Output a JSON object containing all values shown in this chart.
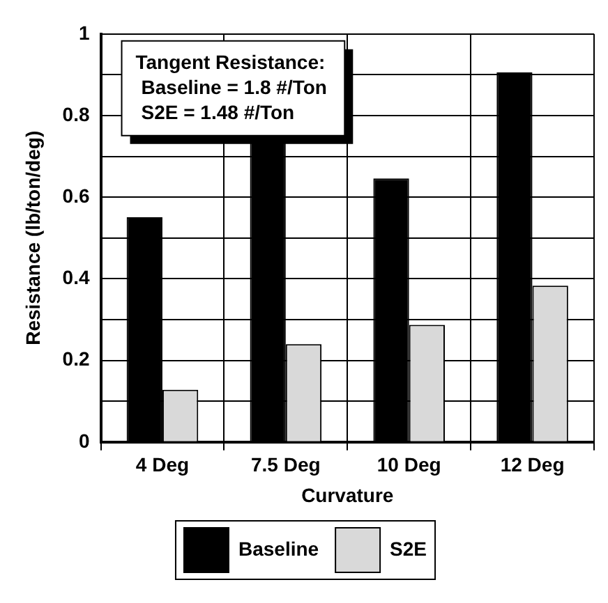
{
  "chart_data": {
    "type": "bar",
    "categories": [
      "4 Deg",
      "7.5 Deg",
      "10 Deg",
      "12 Deg"
    ],
    "xlabel": "Curvature",
    "ylabel": "Resistance (lb/ton/deg)",
    "series": [
      {
        "name": "Baseline",
        "color": "#000000",
        "values": [
          0.551,
          0.735,
          0.646,
          0.906
        ]
      },
      {
        "name": "S2E",
        "color": "#d9d9d9",
        "values": [
          0.128,
          0.24,
          0.287,
          0.383
        ]
      }
    ],
    "ylim": [
      0,
      1
    ],
    "yticks": [
      0,
      {
        "value": 0.1,
        "label": null
      },
      0.2,
      {
        "value": 0.3,
        "label": null
      },
      0.4,
      {
        "value": 0.5,
        "label": null
      },
      0.6,
      {
        "value": 0.7,
        "label": null
      },
      0.8,
      {
        "value": 0.9,
        "label": null
      },
      1
    ],
    "grid": true,
    "legend": "bottom",
    "annotations": [
      "Tangent Resistance:",
      "Baseline = 1.8 #/Ton",
      "S2E = 1.48 #/Ton"
    ]
  }
}
